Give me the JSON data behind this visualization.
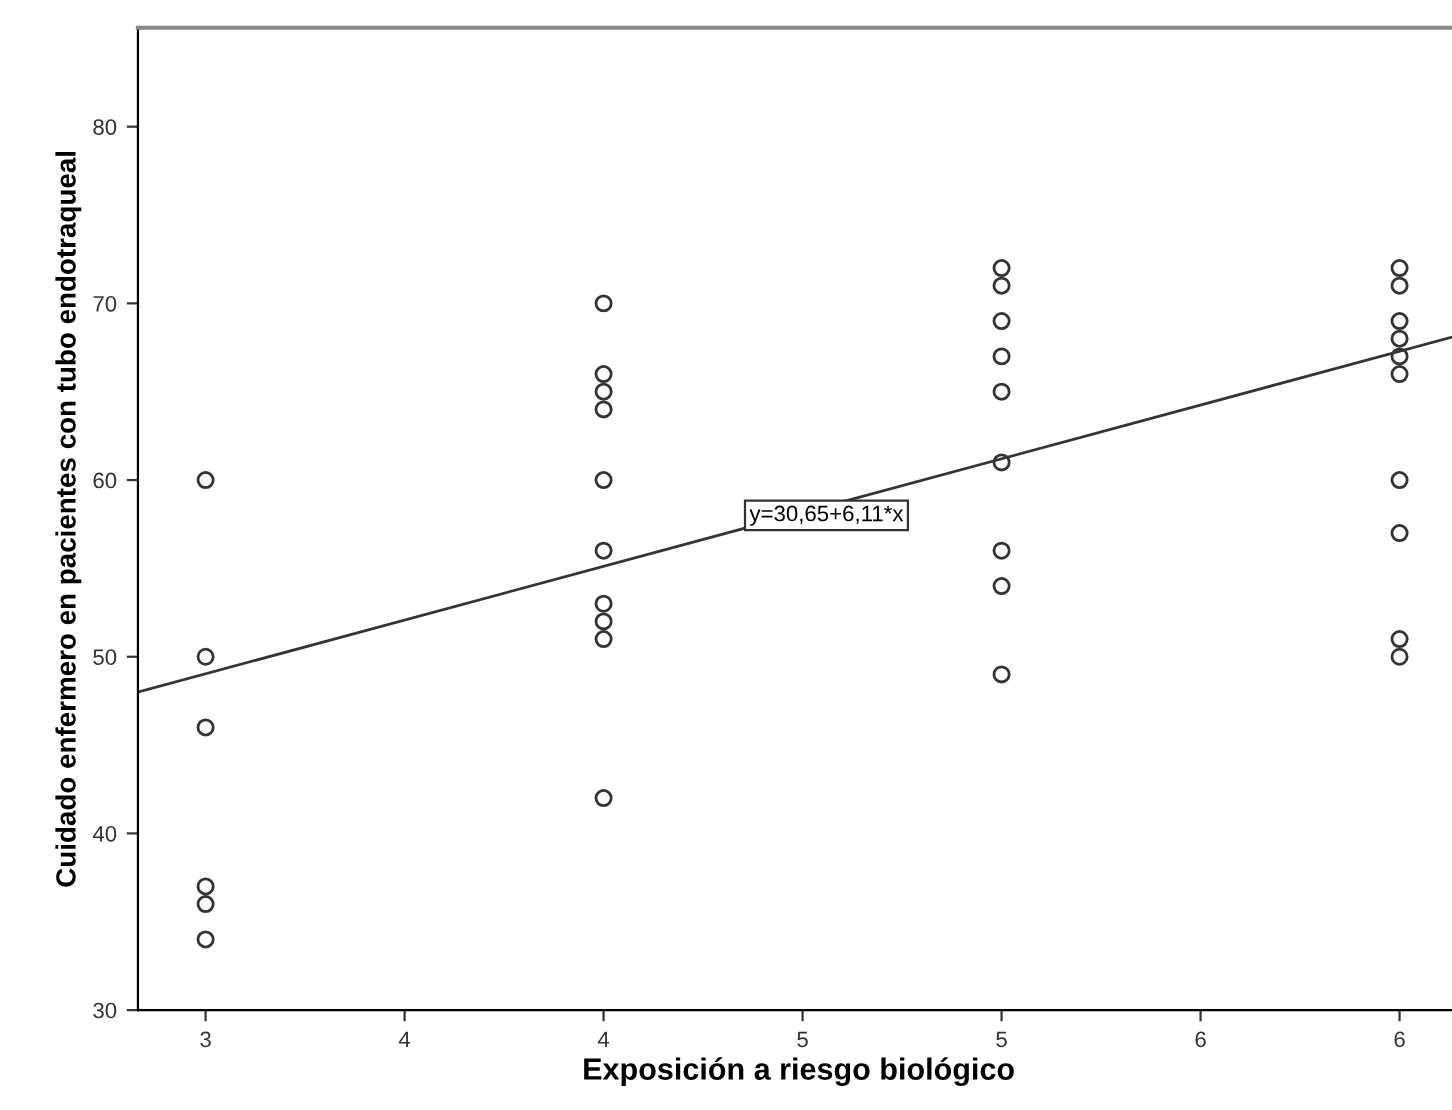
{
  "chart_data": {
    "type": "scatter",
    "xlabel": "Exposición a riesgo biológico",
    "ylabel": "Cuidado enfermero en pacientes con tubo endotraqueal",
    "xlim": [
      2.83,
      6.15
    ],
    "ylim": [
      30,
      85.6
    ],
    "xticks": [
      3,
      {
        "value": 3.5,
        "label": "4"
      },
      4,
      {
        "value": 4.5,
        "label": "5"
      },
      5,
      {
        "value": 5.5,
        "label": "6"
      },
      6
    ],
    "yticks": [
      30,
      40,
      50,
      60,
      70,
      80
    ],
    "marker": "circle",
    "grid": false,
    "legend": false,
    "series": [
      {
        "type": "scatter",
        "color": "#333333",
        "x": [
          3,
          3,
          3,
          3,
          3,
          3,
          4,
          4,
          4,
          4,
          4,
          4,
          4,
          4,
          4,
          4,
          5,
          5,
          5,
          5,
          5,
          5,
          5,
          5,
          5,
          6,
          6,
          6,
          6,
          6,
          6,
          6,
          6,
          6,
          6
        ],
        "values": [
          60,
          50,
          46,
          37,
          36,
          34,
          70,
          66,
          65,
          64,
          60,
          56,
          53,
          52,
          51,
          42,
          72,
          71,
          69,
          67,
          65,
          61,
          56,
          54,
          49,
          72,
          71,
          69,
          68,
          67,
          66,
          60,
          57,
          51,
          50
        ]
      },
      {
        "type": "line",
        "color": "#333333",
        "line_style": "solid",
        "marker": "none",
        "x": [
          2.83,
          6.15
        ],
        "values": [
          48,
          68.2
        ]
      }
    ],
    "annotations": [
      {
        "text": "y=30,65+6,11*x",
        "x": 4.56,
        "y": 58
      }
    ]
  }
}
